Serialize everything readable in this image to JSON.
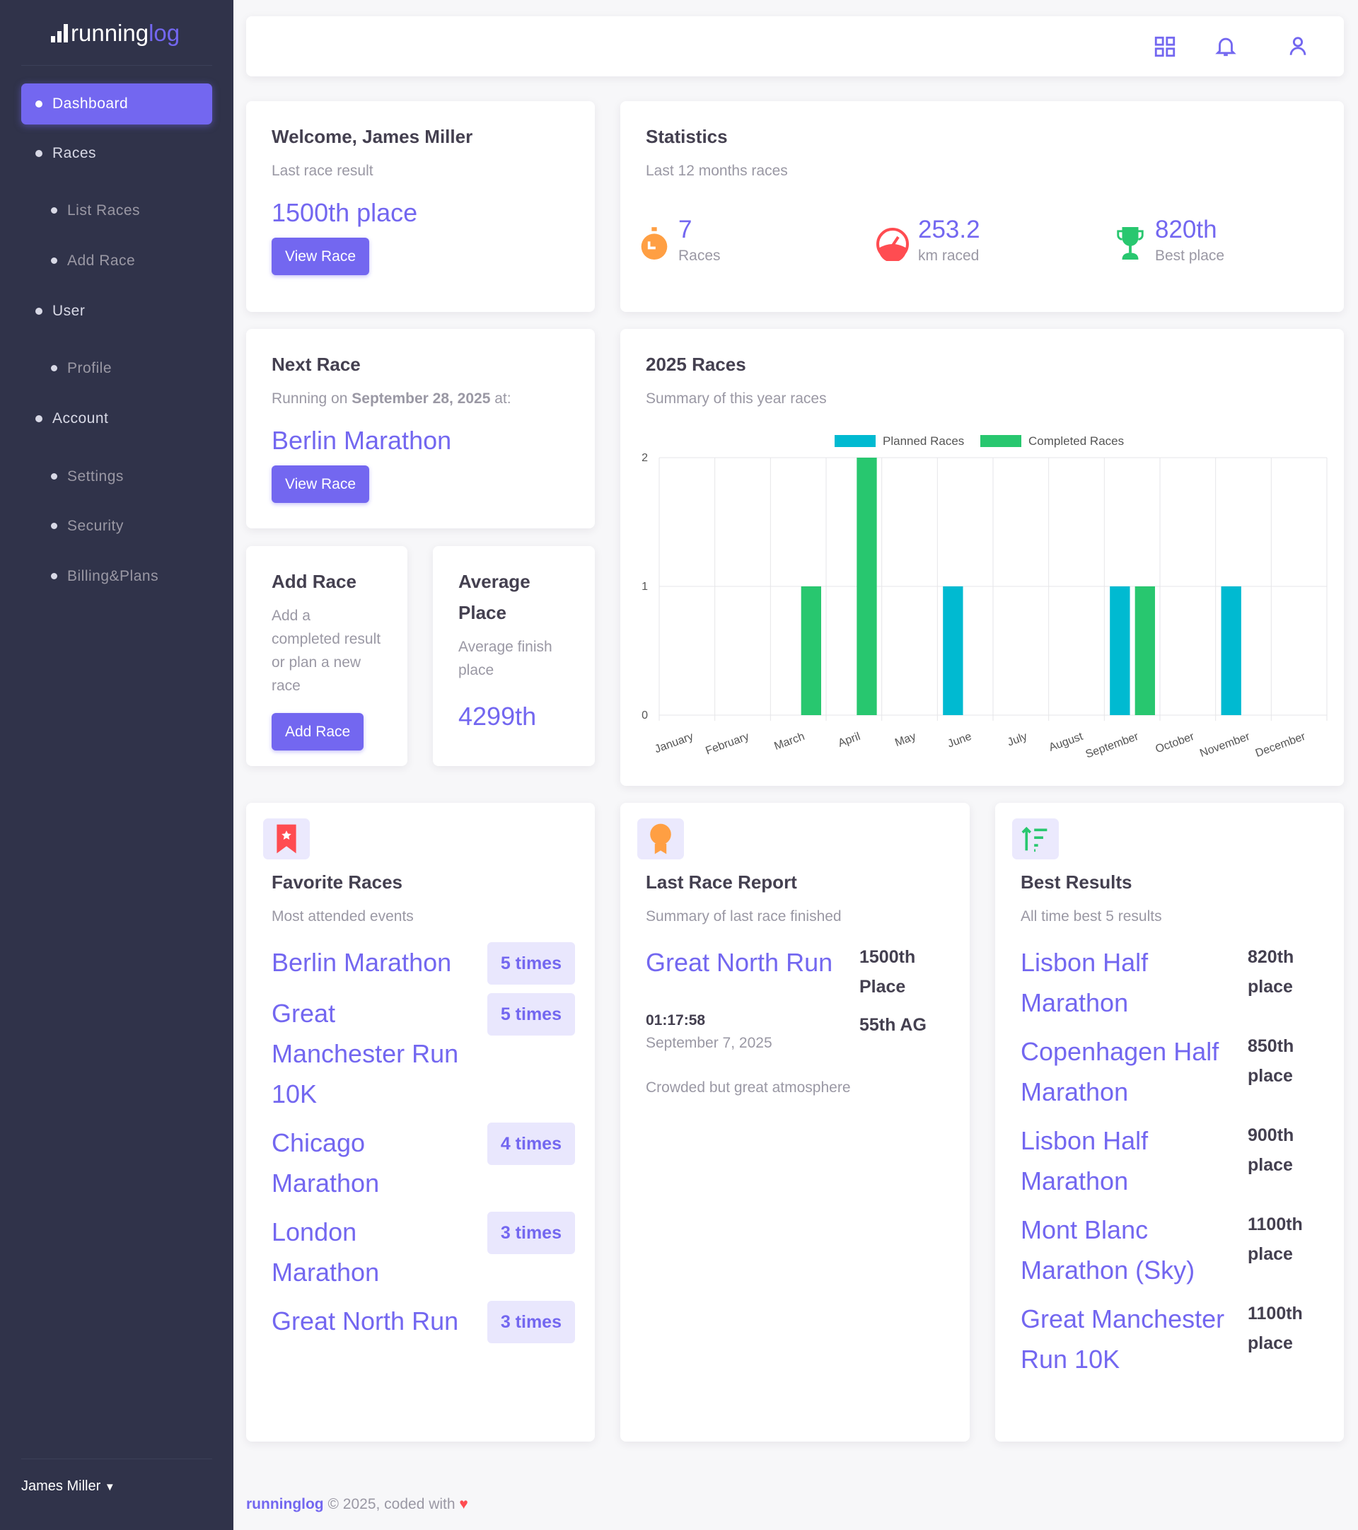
{
  "brand": {
    "name_a": "running",
    "name_b": "log"
  },
  "colors": {
    "accent": "#7367f0",
    "sidebar": "#30334a",
    "planned": "#00bad1",
    "completed": "#28c76f",
    "orange": "#ff9f43",
    "red": "#ff4c51"
  },
  "sidebar": {
    "items": [
      {
        "label": "Dashboard",
        "active": true,
        "sub": false
      },
      {
        "label": "Races",
        "sub": false
      },
      {
        "label": "List Races",
        "sub": true
      },
      {
        "label": "Add Race",
        "sub": true
      },
      {
        "label": "User",
        "sub": false
      },
      {
        "label": "Profile",
        "sub": true
      },
      {
        "label": "Account",
        "sub": false
      },
      {
        "label": "Settings",
        "sub": true
      },
      {
        "label": "Security",
        "sub": true
      },
      {
        "label": "Billing&Plans",
        "sub": true
      }
    ],
    "user": "James Miller"
  },
  "topbar": {
    "icons": [
      "grid-icon",
      "bell-icon",
      "user-icon"
    ]
  },
  "welcome": {
    "title": "Welcome, James Miller",
    "subtitle": "Last race result",
    "result": "1500th place",
    "button": "View Race"
  },
  "statistics": {
    "title": "Statistics",
    "subtitle": "Last 12 months races",
    "items": [
      {
        "value": "7",
        "label": "Races",
        "icon": "stopwatch-icon"
      },
      {
        "value": "253.2",
        "label": "km raced",
        "icon": "speedometer-icon"
      },
      {
        "value": "820th",
        "label": "Best place",
        "icon": "trophy-icon"
      }
    ]
  },
  "next_race": {
    "title": "Next Race",
    "prefix": "Running on ",
    "date": "September 28, 2025",
    "suffix": " at:",
    "race": "Berlin Marathon",
    "button": "View Race"
  },
  "add_race": {
    "title": "Add Race",
    "text": "Add a completed result or plan a new race",
    "button": "Add Race"
  },
  "average": {
    "title": "Average Place",
    "subtitle": "Average finish place",
    "value": "4299th"
  },
  "chart_data": {
    "type": "bar",
    "title": "2025 Races",
    "subtitle": "Summary of this year races",
    "categories": [
      "January",
      "February",
      "March",
      "April",
      "May",
      "June",
      "July",
      "August",
      "September",
      "October",
      "November",
      "December"
    ],
    "series": [
      {
        "name": "Planned Races",
        "values": [
          0,
          0,
          0,
          0,
          0,
          1,
          0,
          0,
          1,
          0,
          1,
          0
        ]
      },
      {
        "name": "Completed Races",
        "values": [
          0,
          0,
          1,
          2,
          0,
          0,
          0,
          0,
          1,
          0,
          0,
          0
        ]
      }
    ],
    "ylim": [
      0,
      2
    ],
    "yticks": [
      "0",
      "1",
      "2"
    ],
    "grid": true,
    "legend": "top"
  },
  "favorites": {
    "title": "Favorite Races",
    "subtitle": "Most attended events",
    "items": [
      {
        "name": "Berlin Marathon",
        "count": "5 times"
      },
      {
        "name": "Great Manchester Run 10K",
        "count": "5 times"
      },
      {
        "name": "Chicago Marathon",
        "count": "4 times"
      },
      {
        "name": "London Marathon",
        "count": "3 times"
      },
      {
        "name": "Great North Run",
        "count": "3 times"
      }
    ]
  },
  "last_report": {
    "title": "Last Race Report",
    "subtitle": "Summary of last race finished",
    "race": "Great North Run",
    "place": "1500th Place",
    "time": "01:17:58",
    "date": "September 7, 2025",
    "ag": "55th AG",
    "note": "Crowded but great atmosphere"
  },
  "best": {
    "title": "Best Results",
    "subtitle": "All time best 5 results",
    "items": [
      {
        "name": "Lisbon Half Marathon",
        "place": "820th place"
      },
      {
        "name": "Copenhagen Half Marathon",
        "place": "850th place"
      },
      {
        "name": "Lisbon Half Marathon",
        "place": "900th place"
      },
      {
        "name": "Mont Blanc Marathon (Sky)",
        "place": "1100th place"
      },
      {
        "name": "Great Manchester Run 10K",
        "place": "1100th place"
      }
    ]
  },
  "footer": {
    "brand": "runninglog",
    "text": " © 2025, coded with "
  }
}
